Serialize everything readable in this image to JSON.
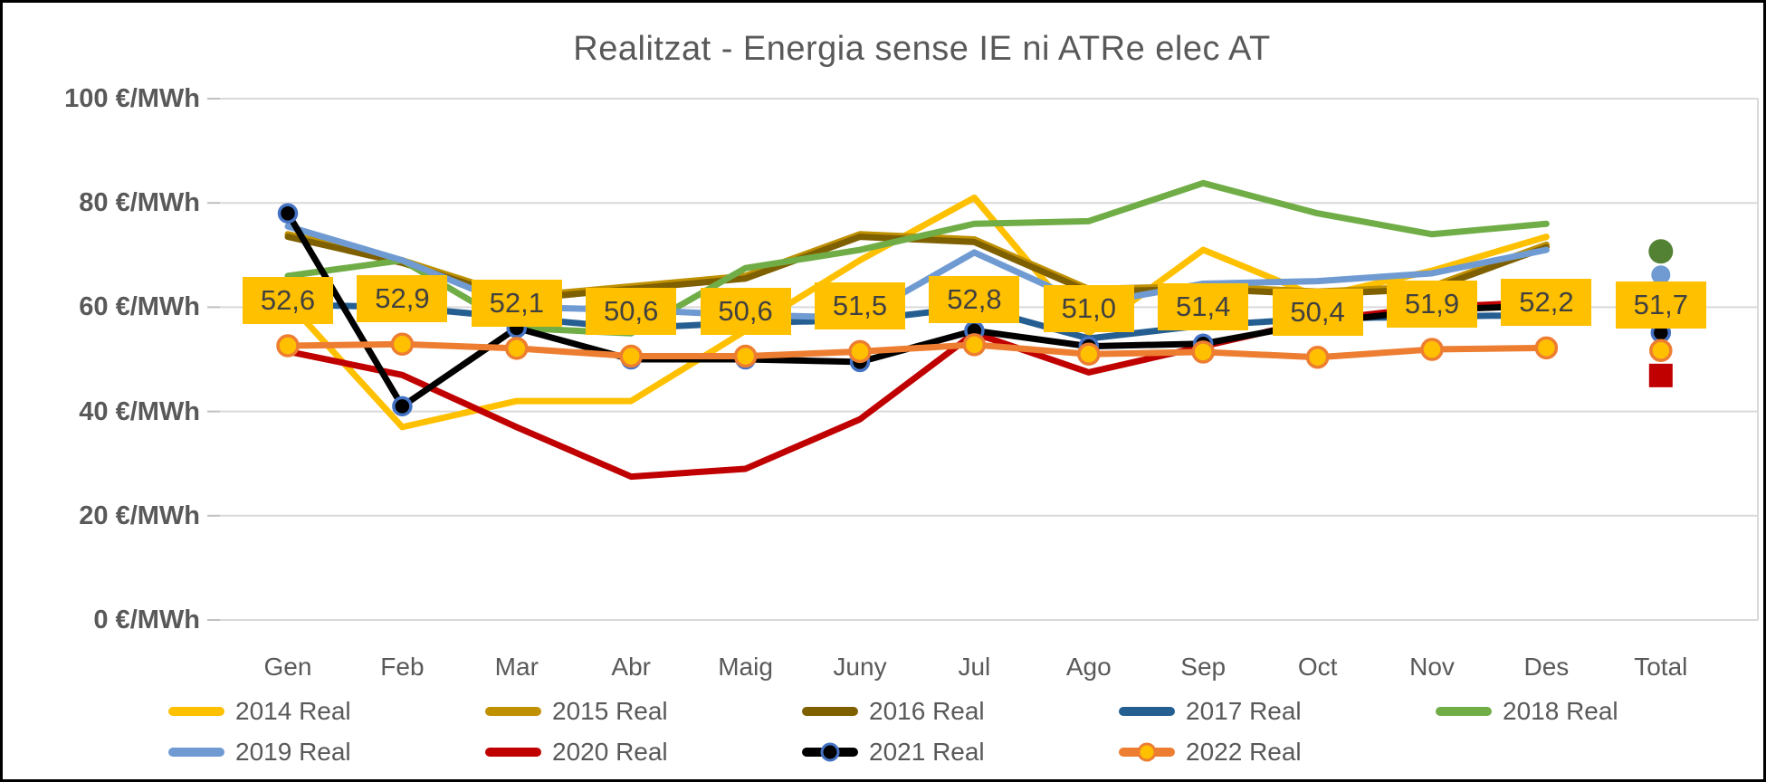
{
  "chart_data": {
    "type": "line",
    "title": "Realitzat - Energia sense IE ni ATRe elec AT",
    "y_unit": "€/MWh",
    "ylim": [
      0,
      100
    ],
    "grid": "horizontal",
    "yticks": [
      {
        "value": 100,
        "label": "100 €/MWh"
      },
      {
        "value": 80,
        "label": "80 €/MWh"
      },
      {
        "value": 60,
        "label": "60 €/MWh"
      },
      {
        "value": 40,
        "label": "40 €/MWh"
      },
      {
        "value": 20,
        "label": "20 €/MWh"
      },
      {
        "value": 0,
        "label": "0 €/MWh"
      }
    ],
    "categories": [
      "Gen",
      "Feb",
      "Mar",
      "Abr",
      "Maig",
      "Juny",
      "Jul",
      "Ago",
      "Sep",
      "Oct",
      "Nov",
      "Des",
      "Total"
    ],
    "series": [
      {
        "name": "2014 Real",
        "color": "#FFC000",
        "marker": null,
        "values": [
          61,
          37,
          42,
          42,
          55.5,
          69,
          81,
          55,
          71,
          62,
          67,
          73.5
        ]
      },
      {
        "name": "2015 Real",
        "color": "#BF9000",
        "marker": null,
        "values": [
          74,
          69,
          62,
          64,
          66,
          74,
          73,
          63.5,
          64,
          63,
          64,
          72
        ]
      },
      {
        "name": "2016 Real",
        "color": "#7F6000",
        "marker": null,
        "values": [
          73.5,
          68.5,
          61.5,
          63.5,
          65.5,
          73.5,
          72.5,
          63,
          63.5,
          62.5,
          63.5,
          71.5
        ]
      },
      {
        "name": "2017 Real",
        "color": "#255E91",
        "marker": null,
        "values": [
          60.5,
          60,
          58,
          56,
          57,
          57.5,
          60,
          54,
          56.5,
          57.8,
          58.2,
          58.5
        ]
      },
      {
        "name": "2018 Real",
        "color": "#70AD47",
        "marker": null,
        "values": [
          66,
          69,
          56,
          55,
          67.5,
          71,
          76,
          76.5,
          83.8,
          78,
          74,
          76
        ]
      },
      {
        "name": "2019 Real",
        "color": "#6F9BD2",
        "marker": null,
        "values": [
          75.5,
          69,
          60,
          59.5,
          58.5,
          58,
          70.5,
          60.5,
          64.5,
          65,
          66.5,
          71
        ]
      },
      {
        "name": "2020 Real",
        "color": "#C00000",
        "marker": null,
        "values": [
          51.5,
          47,
          37,
          27.5,
          29,
          38.5,
          55,
          47.5,
          52.5,
          57.5,
          60,
          61
        ]
      },
      {
        "name": "2021 Real",
        "color": "#000000",
        "marker": {
          "shape": "circle",
          "fill": "#000000",
          "stroke": "#4472C4",
          "r": 9.5
        },
        "values": [
          78,
          41,
          56,
          50,
          50,
          49.5,
          55.5,
          52.5,
          53,
          57,
          59.5,
          60.3
        ]
      },
      {
        "name": "2022 Real",
        "color": "#ED7D31",
        "marker": {
          "shape": "circle",
          "fill": "#FFC000",
          "stroke": "#ED7D31",
          "r": 11
        },
        "values": [
          52.6,
          52.9,
          52.1,
          50.6,
          50.6,
          51.5,
          52.8,
          51.0,
          51.4,
          50.4,
          51.9,
          52.2
        ]
      }
    ],
    "total_markers": [
      {
        "series": "2018 Real",
        "value": 70.7,
        "shape": "circle",
        "fill": "#548235",
        "stroke": null,
        "r": 13.5
      },
      {
        "series": "2019 Real",
        "value": 66.2,
        "shape": "circle",
        "fill": "#6F9BD2",
        "stroke": null,
        "r": 10.5
      },
      {
        "series": "2021 Real",
        "value": 55.1,
        "shape": "circle",
        "fill": "#000000",
        "stroke": "#4472C4",
        "r": 9.5
      },
      {
        "series": "2022 Real",
        "value": 51.7,
        "shape": "circle",
        "fill": "#FFC000",
        "stroke": "#ED7D31",
        "r": 11
      },
      {
        "series": "2020 Real",
        "value": 46.9,
        "shape": "square",
        "fill": "#C00000",
        "stroke": null,
        "size": 26
      }
    ],
    "data_labels": {
      "series": "2022 Real",
      "background": "#FFC000",
      "text_color": "#404040",
      "values": [
        "52,6",
        "52,9",
        "52,1",
        "50,6",
        "50,6",
        "51,5",
        "52,8",
        "51,0",
        "51,4",
        "50,4",
        "51,9",
        "52,2",
        "51,7"
      ]
    },
    "legend": {
      "rows": [
        [
          "2014 Real",
          "2015 Real",
          "2016 Real",
          "2017 Real",
          "2018 Real"
        ],
        [
          "2019 Real",
          "2020 Real",
          "2021 Real",
          "2022 Real"
        ]
      ],
      "position": "bottom"
    },
    "colors": {
      "gridline": "#D9D9D9",
      "tick": "#BFBFBF",
      "axis_text": "#595959",
      "title_text": "#595959"
    }
  }
}
